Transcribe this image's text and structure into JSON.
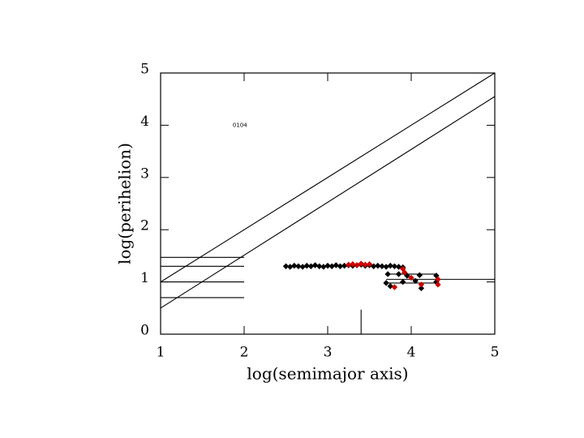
{
  "chart_data": {
    "type": "scatter",
    "xlabel": "log(semimajor axis)",
    "ylabel": "log(perihelion)",
    "annotation": "0104",
    "annotation_x": 1.95,
    "annotation_y": 4.0,
    "xlim": [
      1,
      5
    ],
    "ylim": [
      0,
      5
    ],
    "xticks": [
      1,
      2,
      3,
      4,
      5
    ],
    "yticks": [
      0,
      1,
      2,
      3,
      4,
      5
    ],
    "series": [
      {
        "color": "#000000",
        "x": [
          2.5,
          2.55,
          2.6,
          2.65,
          2.7,
          2.75,
          2.8,
          2.85,
          2.9,
          2.95,
          3.0,
          3.05,
          3.1,
          3.15,
          3.2,
          3.25,
          3.3,
          3.35,
          3.4,
          3.45,
          3.5,
          3.55,
          3.6,
          3.65,
          3.7,
          3.75,
          3.8,
          3.85,
          3.9,
          3.72,
          3.85,
          3.95,
          4.1,
          4.3,
          3.7,
          3.9,
          4.05,
          4.3,
          3.75,
          4.12
        ],
        "y": [
          1.3,
          1.29,
          1.31,
          1.3,
          1.29,
          1.31,
          1.3,
          1.32,
          1.3,
          1.29,
          1.31,
          1.3,
          1.32,
          1.3,
          1.31,
          1.32,
          1.31,
          1.32,
          1.33,
          1.31,
          1.32,
          1.3,
          1.31,
          1.3,
          1.29,
          1.31,
          1.3,
          1.29,
          1.28,
          1.15,
          1.15,
          1.12,
          1.13,
          1.12,
          0.98,
          1.0,
          1.02,
          1.0,
          0.92,
          0.88
        ]
      },
      {
        "color": "#cc0000",
        "x": [
          3.25,
          3.3,
          3.35,
          3.4,
          3.45,
          3.5,
          3.9,
          3.92,
          4.0,
          4.12,
          4.32,
          4.32,
          3.8
        ],
        "y": [
          1.33,
          1.34,
          1.32,
          1.35,
          1.33,
          1.34,
          1.25,
          1.18,
          1.08,
          0.95,
          0.95,
          1.05,
          0.9
        ]
      }
    ],
    "lines": [
      {
        "x": [
          1,
          5
        ],
        "y": [
          1,
          5
        ]
      },
      {
        "x": [
          1,
          5
        ],
        "y": [
          0.5,
          4.55
        ]
      },
      {
        "x": [
          1,
          2
        ],
        "y": [
          1.47,
          1.47
        ]
      },
      {
        "x": [
          1,
          2
        ],
        "y": [
          1.3,
          1.3
        ]
      },
      {
        "x": [
          1,
          2
        ],
        "y": [
          1.0,
          1.0
        ]
      },
      {
        "x": [
          1,
          2
        ],
        "y": [
          0.7,
          0.7
        ]
      },
      {
        "x": [
          3.4,
          3.4
        ],
        "y": [
          0,
          0.47
        ]
      },
      {
        "x": [
          3.7,
          5
        ],
        "y": [
          1.05,
          1.05
        ]
      },
      {
        "x": [
          3.72,
          4.3
        ],
        "y": [
          1.15,
          1.15
        ]
      },
      {
        "x": [
          3.7,
          4.3
        ],
        "y": [
          0.98,
          0.98
        ]
      }
    ]
  }
}
